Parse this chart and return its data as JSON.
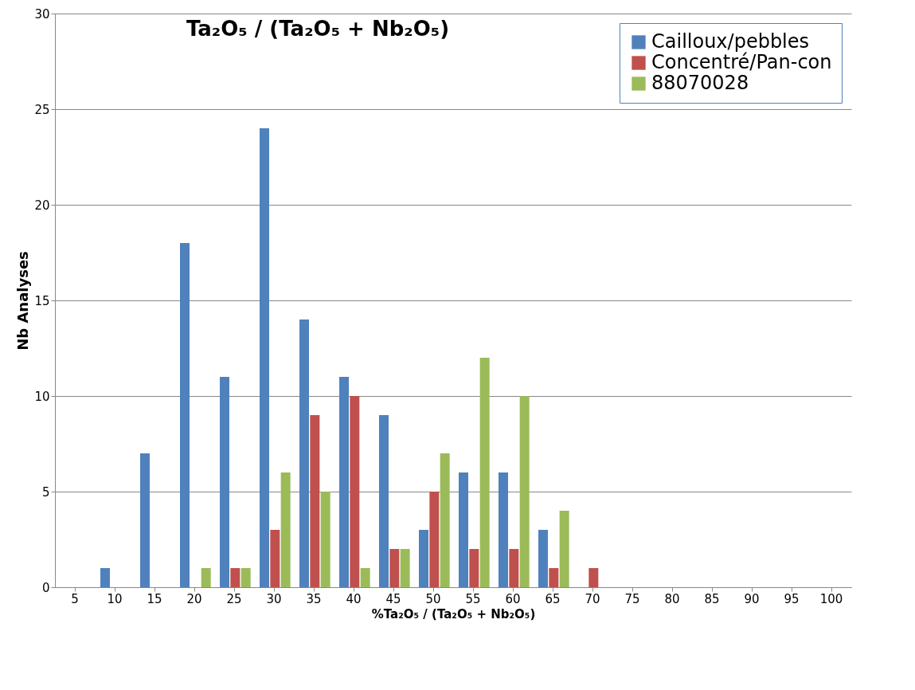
{
  "chart_data": {
    "type": "bar",
    "title": "Ta₂O₅ / (Ta₂O₅ + Nb₂O₅)",
    "xlabel": "%Ta₂O₅ / (Ta₂O₅ + Nb₂O₅)",
    "ylabel": "Nb Analyses",
    "categories": [
      "5",
      "10",
      "15",
      "20",
      "25",
      "30",
      "35",
      "40",
      "45",
      "50",
      "55",
      "60",
      "65",
      "70",
      "75",
      "80",
      "85",
      "90",
      "95",
      "100"
    ],
    "series": [
      {
        "name": "Cailloux/pebbles",
        "color": "#4f81bd",
        "values": [
          0,
          1,
          7,
          18,
          11,
          24,
          14,
          11,
          9,
          3,
          6,
          6,
          3,
          0,
          0,
          0,
          0,
          0,
          0,
          0
        ]
      },
      {
        "name": "Concentré/Pan-con",
        "color": "#c0504d",
        "values": [
          0,
          0,
          0,
          0,
          1,
          3,
          9,
          10,
          2,
          5,
          2,
          2,
          1,
          1,
          0,
          0,
          0,
          0,
          0,
          0
        ]
      },
      {
        "name": "88070028",
        "color": "#9bbb59",
        "values": [
          0,
          0,
          0,
          1,
          1,
          6,
          5,
          1,
          2,
          7,
          12,
          10,
          4,
          0,
          0,
          0,
          0,
          0,
          0,
          0
        ]
      }
    ],
    "ylim": [
      0,
      30
    ],
    "yticks": [
      0,
      5,
      10,
      15,
      20,
      25,
      30
    ],
    "grid": "y",
    "legend": "top right"
  }
}
